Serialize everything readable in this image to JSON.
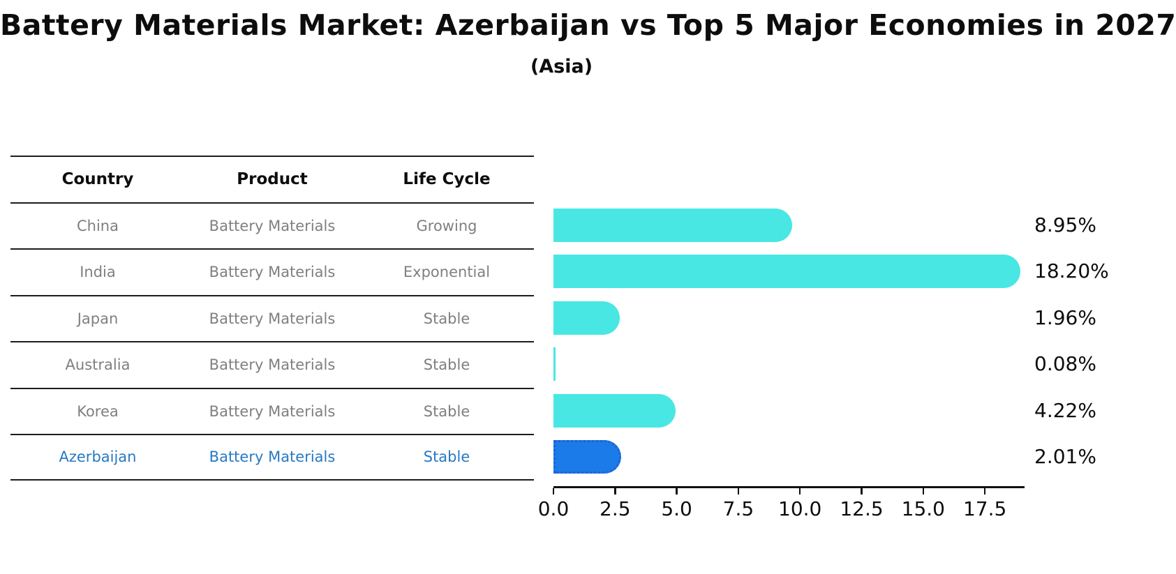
{
  "title": "Battery Materials Market: Azerbaijan vs Top 5 Major Economies in 2027",
  "subtitle": "(Asia)",
  "table": {
    "headers": [
      "Country",
      "Product",
      "Life Cycle"
    ],
    "rows": [
      {
        "country": "China",
        "product": "Battery Materials",
        "life_cycle": "Growing",
        "highlighted": false
      },
      {
        "country": "India",
        "product": "Battery Materials",
        "life_cycle": "Exponential",
        "highlighted": false
      },
      {
        "country": "Japan",
        "product": "Battery Materials",
        "life_cycle": "Stable",
        "highlighted": false
      },
      {
        "country": "Australia",
        "product": "Battery Materials",
        "life_cycle": "Stable",
        "highlighted": false
      },
      {
        "country": "Korea",
        "product": "Battery Materials",
        "life_cycle": "Stable",
        "highlighted": false
      },
      {
        "country": "Azerbaijan",
        "product": "Battery Materials",
        "life_cycle": "Stable",
        "highlighted": true
      }
    ]
  },
  "chart_data": {
    "type": "bar",
    "orientation": "horizontal",
    "title": "Battery Materials Market: Azerbaijan vs Top 5 Major Economies in 2027",
    "subtitle": "(Asia)",
    "categories": [
      "China",
      "India",
      "Japan",
      "Australia",
      "Korea",
      "Azerbaijan"
    ],
    "values": [
      8.95,
      18.2,
      1.96,
      0.08,
      4.22,
      2.01
    ],
    "bar_labels": [
      "8.95%",
      "18.20%",
      "1.96%",
      "0.08%",
      "4.22%",
      "2.01%"
    ],
    "x_tick_labels": [
      "0.0",
      "2.5",
      "5.0",
      "7.5",
      "10.0",
      "12.5",
      "15.0",
      "17.5"
    ],
    "x_tick_values": [
      0,
      2.5,
      5,
      7.5,
      10,
      12.5,
      15,
      17.5
    ],
    "xlim": [
      0,
      19.11
    ],
    "grid": false,
    "legend_position": "none",
    "highlight_index": 5
  },
  "colors": {
    "bar": "#48E7E3",
    "highlight_bar": "#1B7BE8",
    "highlight_border": "#2060D8",
    "highlight_text": "#2878C4",
    "row_text": "#7f7f7f",
    "header_text": "#0d0d0d",
    "axis": "#111111",
    "table_line": "#1c1c1c"
  }
}
